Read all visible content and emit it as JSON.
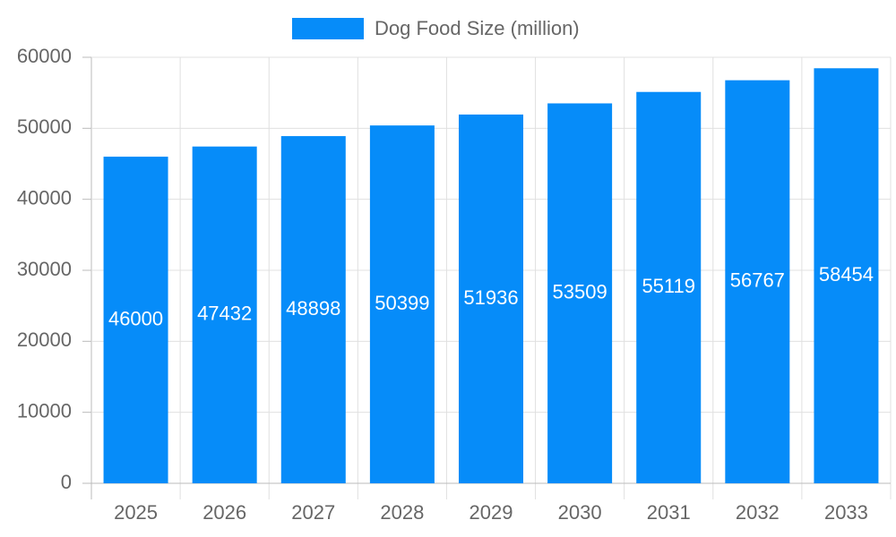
{
  "chart_data": {
    "type": "bar",
    "legend_position": "top",
    "categories": [
      "2025",
      "2026",
      "2027",
      "2028",
      "2029",
      "2030",
      "2031",
      "2032",
      "2033"
    ],
    "series": [
      {
        "name": "Dog Food Size (million)",
        "color": "#068cf9",
        "values": [
          46000,
          47432,
          48898,
          50399,
          51936,
          53509,
          55119,
          56767,
          58454
        ]
      }
    ],
    "data_labels": true,
    "ylim": [
      0,
      60000
    ],
    "yticks": [
      0,
      10000,
      20000,
      30000,
      40000,
      50000,
      60000
    ],
    "grid": true
  }
}
